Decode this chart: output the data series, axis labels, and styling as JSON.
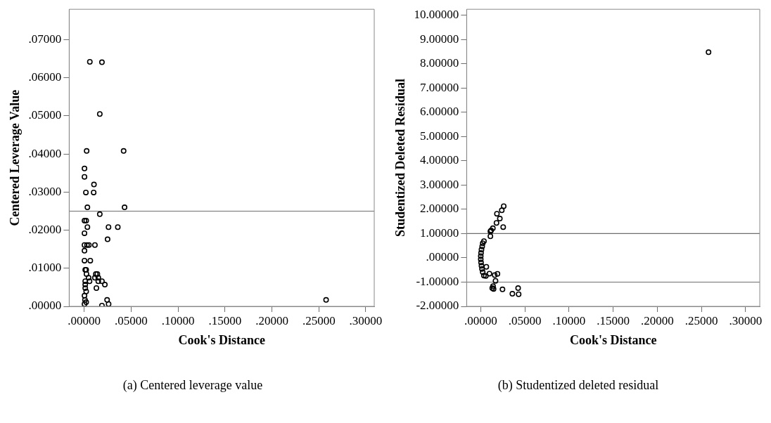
{
  "chart_data": [
    {
      "type": "scatter",
      "xlabel": "Cook's Distance",
      "ylabel": "Centered Leverage Value",
      "marker": "circle",
      "grid": false,
      "legend": false,
      "xlim": [
        -0.016,
        0.309
      ],
      "ylim": [
        0,
        0.078
      ],
      "xticks": [
        {
          "value": 0,
          "label": ".00000"
        },
        {
          "value": 0.05,
          "label": ".05000"
        },
        {
          "value": 0.1,
          "label": ".10000"
        },
        {
          "value": 0.15,
          "label": ".15000"
        },
        {
          "value": 0.2,
          "label": ".20000"
        },
        {
          "value": 0.25,
          "label": ".25000"
        },
        {
          "value": 0.3,
          "label": ".30000"
        }
      ],
      "yticks": [
        {
          "value": 0,
          "label": ".00000"
        },
        {
          "value": 0.01,
          "label": ".01000"
        },
        {
          "value": 0.02,
          "label": ".02000"
        },
        {
          "value": 0.03,
          "label": ".03000"
        },
        {
          "value": 0.04,
          "label": ".04000"
        },
        {
          "value": 0.05,
          "label": ".05000"
        },
        {
          "value": 0.06,
          "label": ".06000"
        },
        {
          "value": 0.07,
          "label": ".07000"
        }
      ],
      "ref_lines": [
        {
          "axis": "y",
          "value": 0.025,
          "color": "#6e6e6e"
        }
      ],
      "annotations": [
        "(a) Centered leverage value"
      ],
      "series": [
        {
          "color": "#000000",
          "x": [
            0.006,
            0.0189,
            0.0166,
            0.0026,
            0.042,
            0.0003,
            0.0003,
            0.0104,
            0.0018,
            0.0101,
            0.0034,
            0.043,
            0.0166,
            0.0003,
            0.0021,
            0.0034,
            0.0259,
            0.0358,
            0.0003,
            0.0249,
            0.0003,
            0.0015,
            0.003,
            0.005,
            0.0114,
            0.0003,
            0.0003,
            0.0065,
            0.0011,
            0.0021,
            0.0024,
            0.0124,
            0.014,
            0.0047,
            0.0114,
            0.015,
            0.0011,
            0.0057,
            0.015,
            0.0189,
            0.022,
            0.013,
            0.0011,
            0.0011,
            0.0021,
            0.0003,
            0.0008,
            0.0021,
            0.0003,
            0.0244,
            0.026,
            0.0189,
            0.2577
          ],
          "values": [
            0.0642,
            0.0641,
            0.0505,
            0.0408,
            0.0408,
            0.0362,
            0.034,
            0.032,
            0.0299,
            0.0299,
            0.026,
            0.026,
            0.0242,
            0.0225,
            0.0225,
            0.0208,
            0.0208,
            0.0208,
            0.0192,
            0.0176,
            0.0161,
            null,
            0.0161,
            0.0161,
            0.0161,
            0.0146,
            0.012,
            0.012,
            0.0096,
            0.0096,
            0.0085,
            0.0085,
            0.0085,
            0.0075,
            0.0075,
            0.0075,
            0.0066,
            0.0066,
            0.0066,
            0.0066,
            0.0057,
            0.0048,
            0.0057,
            0.0048,
            0.0039,
            0.0028,
            0.0017,
            0.0011,
            0.0006,
            0.0017,
            0.0006,
            0.0002,
            0.0017
          ]
        }
      ]
    },
    {
      "type": "scatter",
      "xlabel": "Cook's Distance",
      "ylabel": "Studentized Deleted Residual",
      "marker": "circle",
      "grid": false,
      "legend": false,
      "xlim": [
        -0.016,
        0.316
      ],
      "ylim": [
        -2,
        10.25
      ],
      "xticks": [
        {
          "value": 0,
          "label": ".00000"
        },
        {
          "value": 0.05,
          "label": ".05000"
        },
        {
          "value": 0.1,
          "label": ".10000"
        },
        {
          "value": 0.15,
          "label": ".15000"
        },
        {
          "value": 0.2,
          "label": ".20000"
        },
        {
          "value": 0.25,
          "label": ".25000"
        },
        {
          "value": 0.3,
          "label": ".30000"
        }
      ],
      "yticks": [
        {
          "value": -2,
          "label": "-2.00000"
        },
        {
          "value": -1,
          "label": "-1.00000"
        },
        {
          "value": 0,
          "label": ".00000"
        },
        {
          "value": 1,
          "label": "1.00000"
        },
        {
          "value": 2,
          "label": "2.00000"
        },
        {
          "value": 3,
          "label": "3.00000"
        },
        {
          "value": 4,
          "label": "4.00000"
        },
        {
          "value": 5,
          "label": "5.00000"
        },
        {
          "value": 6,
          "label": "6.00000"
        },
        {
          "value": 7,
          "label": "7.00000"
        },
        {
          "value": 8,
          "label": "8.00000"
        },
        {
          "value": 9,
          "label": "9.00000"
        },
        {
          "value": 10,
          "label": "10.00000"
        }
      ],
      "ref_lines": [
        {
          "axis": "y",
          "value": 1,
          "color": "#6e6e6e"
        },
        {
          "axis": "y",
          "value": -1,
          "color": "#6e6e6e"
        }
      ],
      "annotations": [
        "(b) Studentized deleted residual"
      ],
      "series": [
        {
          "color": "#000000",
          "x": [
            0.258,
            0.026,
            0.0238,
            0.0183,
            0.0216,
            0.0178,
            0.0254,
            0.0137,
            0.0117,
            0.0109,
            0.0109,
            0.0036,
            0.0022,
            0.0016,
            0.0008,
            0.0003,
            0.0,
            0.0,
            0.0003,
            0.0008,
            0.0014,
            0.0022,
            0.0036,
            0.0057,
            0.0063,
            0.0098,
            0.0158,
            0.0189,
            0.0167,
            0.0139,
            0.0145,
            0.013,
            0.0246,
            0.0358,
            0.0423,
            0.0429
          ],
          "values": [
            8.48,
            2.13,
            1.96,
            1.82,
            1.62,
            1.44,
            1.27,
            1.22,
            1.13,
            1.09,
            0.89,
            0.69,
            0.6,
            0.47,
            0.34,
            0.2,
            0.07,
            -0.06,
            -0.19,
            -0.33,
            -0.46,
            -0.59,
            -0.73,
            -0.75,
            -0.37,
            -0.65,
            -0.71,
            -0.66,
            -0.95,
            -1.17,
            -1.28,
            -1.25,
            -1.3,
            -1.48,
            -1.25,
            -1.5
          ]
        }
      ]
    }
  ]
}
